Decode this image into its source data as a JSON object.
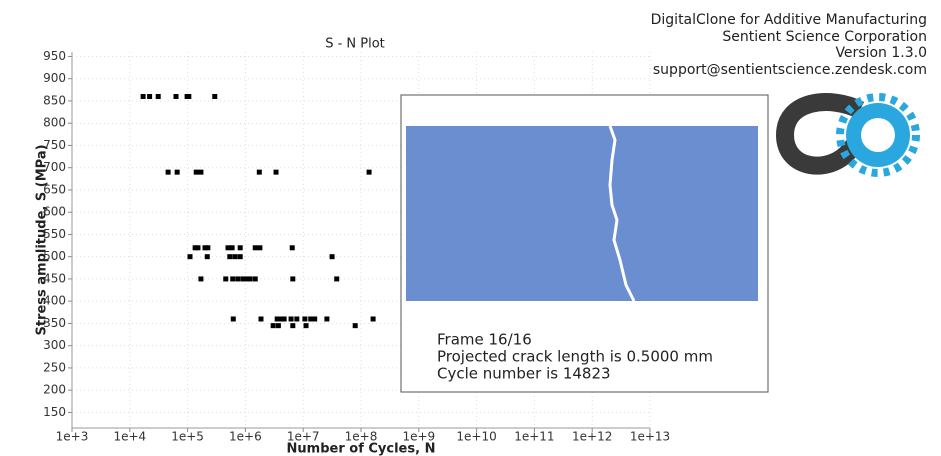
{
  "header": {
    "lines": [
      "DigitalClone for Additive Manufacturing",
      "Sentient Science Corporation",
      "Version 1.3.0",
      "support@sentientscience.zendesk.com"
    ]
  },
  "chart_data": {
    "type": "scatter",
    "title": "S - N Plot",
    "x_label": "Number of Cycles, N",
    "y_label": "Stress amplitude, S (MPa)",
    "x_log": true,
    "grid": true,
    "color": "#000000",
    "xlim": [
      1000,
      10000000000000
    ],
    "xticks": [
      {
        "value": 1000,
        "label": "1e+3"
      },
      {
        "value": 10000,
        "label": "1e+4"
      },
      {
        "value": 100000,
        "label": "1e+5"
      },
      {
        "value": 1000000,
        "label": "1e+6"
      },
      {
        "value": 10000000,
        "label": "1e+7"
      },
      {
        "value": 100000000,
        "label": "1e+8"
      },
      {
        "value": 1000000000,
        "label": "1e+9"
      },
      {
        "value": 10000000000,
        "label": "1e+10"
      },
      {
        "value": 100000000000,
        "label": "1e+11"
      },
      {
        "value": 1000000000000,
        "label": "1e+12"
      },
      {
        "value": 10000000000000,
        "label": "1e+13"
      }
    ],
    "ylim": [
      115,
      960
    ],
    "yticks": [
      150,
      200,
      250,
      300,
      350,
      400,
      450,
      500,
      550,
      600,
      650,
      700,
      750,
      800,
      850,
      900,
      950
    ],
    "x": [
      17000,
      22000,
      31000,
      63000,
      98000,
      105000,
      295000,
      46000,
      66000,
      141000,
      170000,
      1740000,
      3390000,
      138000000,
      135000,
      151000,
      200000,
      224000,
      500000,
      589000,
      813000,
      1480000,
      1780000,
      6460000,
      110000,
      219000,
      537000,
      661000,
      813000,
      31600000,
      170000,
      457000,
      603000,
      741000,
      912000,
      1070000,
      1200000,
      1480000,
      6610000,
      38000000,
      617000,
      1860000,
      3550000,
      4170000,
      4680000,
      6170000,
      7760000,
      10700000,
      13500000,
      15800000,
      25700000,
      162000000,
      3020000,
      3720000,
      6610000,
      11200000,
      79400000
    ],
    "values": [
      860,
      860,
      860,
      860,
      860,
      860,
      860,
      690,
      690,
      690,
      690,
      690,
      690,
      690,
      520,
      520,
      520,
      520,
      520,
      520,
      520,
      520,
      520,
      520,
      500,
      500,
      500,
      500,
      500,
      500,
      450,
      450,
      450,
      450,
      450,
      450,
      450,
      450,
      450,
      450,
      360,
      360,
      360,
      360,
      360,
      360,
      360,
      360,
      360,
      360,
      360,
      360,
      345,
      345,
      345,
      345,
      345
    ]
  },
  "panel": {
    "lines": [
      "Frame 16/16",
      "Projected crack length is 0.5000 mm",
      "Cycle number is 14823"
    ]
  }
}
